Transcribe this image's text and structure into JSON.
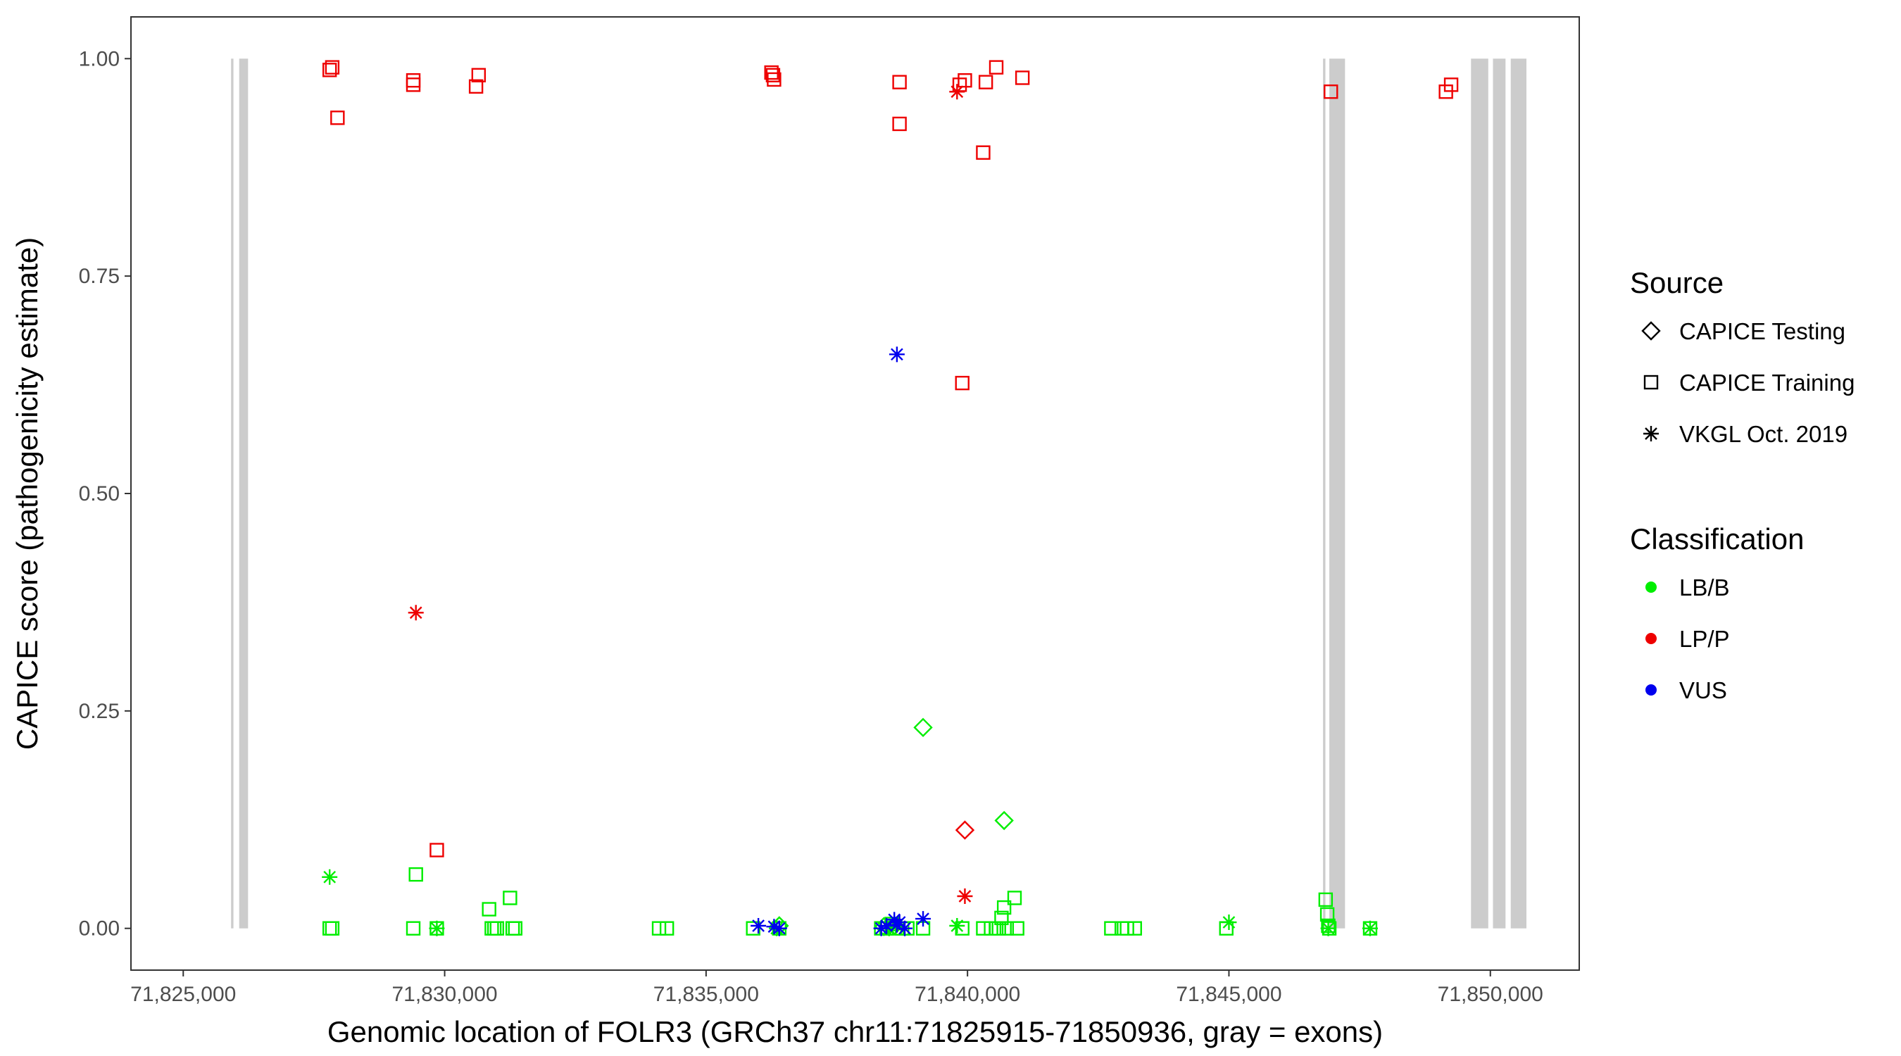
{
  "chart_data": {
    "type": "scatter",
    "title": "",
    "xlabel": "Genomic location of FOLR3 (GRCh37 chr11:71825915-71850936, gray = exons)",
    "ylabel": "CAPICE score (pathogenicity estimate)",
    "xlim": [
      71824000,
      71851700
    ],
    "ylim": [
      -0.048,
      1.048
    ],
    "x_ticks": [
      71825000,
      71830000,
      71835000,
      71840000,
      71845000,
      71850000
    ],
    "x_tick_labels": [
      "71,825,000",
      "71,830,000",
      "71,835,000",
      "71,840,000",
      "71,845,000",
      "71,850,000"
    ],
    "y_ticks": [
      0,
      0.25,
      0.5,
      0.75,
      1.0
    ],
    "y_tick_labels": [
      "0.00",
      "0.25",
      "0.50",
      "0.75",
      "1.00"
    ],
    "grid": false,
    "exons": [
      {
        "start": 71825915,
        "end": 71825960
      },
      {
        "start": 71826070,
        "end": 71826240
      },
      {
        "start": 71846800,
        "end": 71846845
      },
      {
        "start": 71846920,
        "end": 71847220
      },
      {
        "start": 71849630,
        "end": 71849960
      },
      {
        "start": 71850050,
        "end": 71850290
      },
      {
        "start": 71850390,
        "end": 71850690
      }
    ],
    "legend": {
      "position": "right",
      "source_title": "Source",
      "source_entries": [
        {
          "name": "CAPICE Testing",
          "shape": "diamond"
        },
        {
          "name": "CAPICE Training",
          "shape": "square"
        },
        {
          "name": "VKGL Oct. 2019",
          "shape": "asterisk"
        }
      ],
      "class_title": "Classification",
      "class_entries": [
        {
          "name": "LB/B",
          "color": "#00ee00"
        },
        {
          "name": "LP/P",
          "color": "#ee0000"
        },
        {
          "name": "VUS",
          "color": "#0000ee"
        }
      ]
    },
    "colors": {
      "LB/B": "#00ee00",
      "LP/P": "#ee0000",
      "VUS": "#0000ee",
      "exon": "#cccccc"
    },
    "series": [
      {
        "source": "CAPICE Training",
        "classification": "LP/P",
        "x": [
          71827800,
          71827850,
          71827950,
          71829400,
          71829400,
          71830600,
          71830650,
          71836250,
          71836280,
          71836300,
          71838700,
          71838700,
          71839850,
          71839950,
          71840300,
          71840350,
          71840550,
          71841050,
          71846950,
          71849150,
          71849250,
          71839900,
          71829850
        ],
        "y": [
          0.987,
          0.99,
          0.932,
          0.975,
          0.97,
          0.968,
          0.981,
          0.984,
          0.981,
          0.976,
          0.973,
          0.925,
          0.97,
          0.975,
          0.892,
          0.973,
          0.99,
          0.978,
          0.962,
          0.962,
          0.97,
          0.627,
          0.09
        ]
      },
      {
        "source": "CAPICE Training",
        "classification": "LB/B",
        "x": [
          71827800,
          71827850,
          71829400,
          71829450,
          71829850,
          71830850,
          71830900,
          71830950,
          71831000,
          71831250,
          71831300,
          71831350,
          71834100,
          71834250,
          71835900,
          71836400,
          71838350,
          71838450,
          71838550,
          71838650,
          71838750,
          71838850,
          71839150,
          71839900,
          71840300,
          71840450,
          71840550,
          71840600,
          71840650,
          71840700,
          71840750,
          71840900,
          71840950,
          71842750,
          71842950,
          71843050,
          71843200,
          71844950,
          71846850,
          71846880,
          71846900,
          71846920,
          71847700
        ],
        "y": [
          0,
          0,
          0,
          0.062,
          0,
          0.022,
          0,
          0,
          0,
          0.035,
          0,
          0,
          0,
          0,
          0,
          0,
          0,
          0,
          0.005,
          0,
          0,
          0,
          0,
          0,
          0,
          0,
          0,
          0,
          0.012,
          0.024,
          0,
          0.035,
          0,
          0,
          0,
          0,
          0,
          0,
          0.033,
          0.016,
          0.003,
          0,
          0
        ]
      },
      {
        "source": "CAPICE Testing",
        "classification": "LB/B",
        "x": [
          71839150,
          71840700,
          71836400,
          71838400,
          71838600
        ],
        "y": [
          0.231,
          0.124,
          0.003,
          0.002,
          0.003
        ]
      },
      {
        "source": "CAPICE Testing",
        "classification": "LP/P",
        "x": [
          71839950
        ],
        "y": [
          0.113
        ]
      },
      {
        "source": "VKGL Oct. 2019",
        "classification": "LP/P",
        "x": [
          71839800,
          71829450,
          71839950
        ],
        "y": [
          0.962,
          0.363,
          0.037
        ]
      },
      {
        "source": "VKGL Oct. 2019",
        "classification": "LB/B",
        "x": [
          71827800,
          71829850,
          71836350,
          71838500,
          71839800,
          71845000,
          71846900,
          71847700
        ],
        "y": [
          0.059,
          0,
          0,
          0,
          0.003,
          0.007,
          0,
          0
        ]
      },
      {
        "source": "VKGL Oct. 2019",
        "classification": "VUS",
        "x": [
          71838650,
          71836000,
          71836300,
          71836400,
          71838350,
          71838450,
          71838600,
          71838650,
          71838700,
          71838800,
          71839150
        ],
        "y": [
          0.66,
          0.003,
          0.002,
          0,
          0,
          0.003,
          0.01,
          0.004,
          0.007,
          0,
          0.011
        ]
      }
    ]
  }
}
